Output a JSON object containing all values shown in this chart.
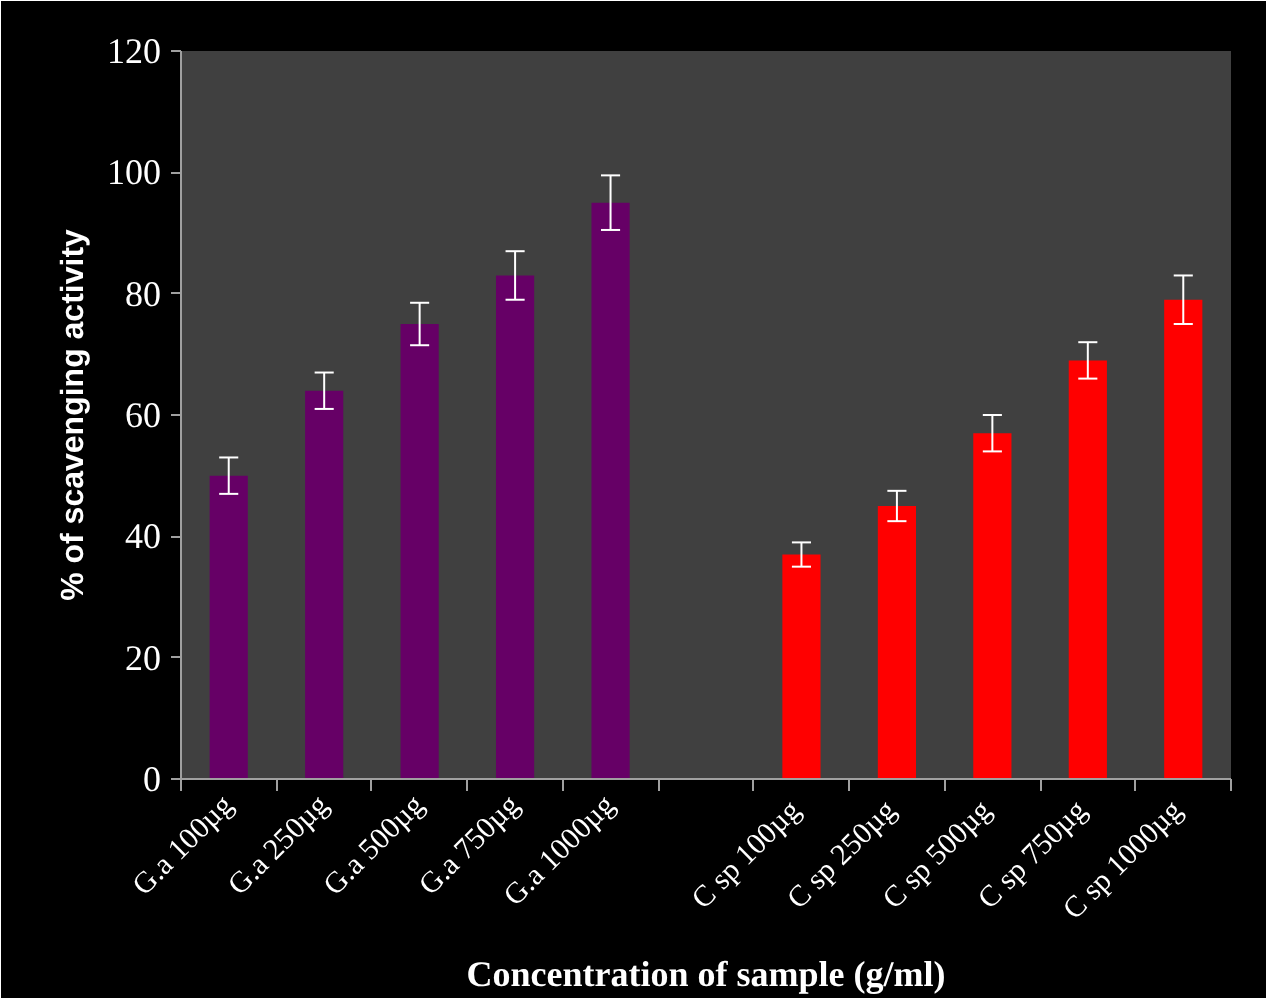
{
  "chart_data": {
    "type": "bar",
    "xlabel": "Concentration of sample (g/ml)",
    "ylabel": "% of scavenging activity",
    "categories": [
      "G.a 100µg",
      "G.a 250µg",
      "G.a 500µg",
      "G.a 750µg",
      "G.a 1000µg",
      null,
      "C  sp 100µg",
      "C  sp 250µg",
      "C  sp 500µg",
      "C  sp 750µg",
      "C  sp 1000µg"
    ],
    "values": [
      50,
      64,
      75,
      83,
      95,
      null,
      37,
      45,
      57,
      69,
      79
    ],
    "colors": [
      "#660066",
      "#660066",
      "#660066",
      "#660066",
      "#660066",
      "#660066",
      "#ff0000",
      "#ff0000",
      "#ff0000",
      "#ff0000",
      "#ff0000"
    ],
    "errors": [
      3,
      3,
      3.5,
      4,
      4.5,
      null,
      2,
      2.5,
      3,
      3,
      4
    ],
    "ylim": [
      0,
      120
    ],
    "yticks": [
      0,
      20,
      40,
      60,
      80,
      100,
      120
    ],
    "grid": false
  }
}
